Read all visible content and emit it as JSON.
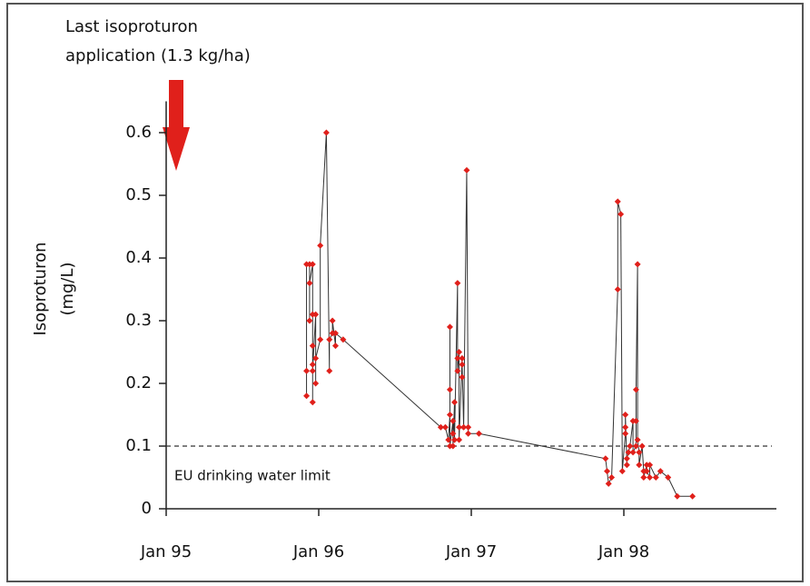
{
  "chart_data": {
    "type": "line",
    "annotation_lines": [
      "Last isoproturon",
      "application (1.3 kg/ha)"
    ],
    "y_label_lines": [
      "Isoproturon",
      "(mg/L)"
    ],
    "limit": {
      "label": "EU drinking water limit",
      "value": 0.1
    },
    "xlim": [
      1995,
      1999
    ],
    "xticks": [
      {
        "value": 1995,
        "label": "Jan 95"
      },
      {
        "value": 1996,
        "label": "Jan 96"
      },
      {
        "value": 1997,
        "label": "Jan 97"
      },
      {
        "value": 1998,
        "label": "Jan 98"
      }
    ],
    "ylim": [
      0,
      0.65
    ],
    "yticks": [
      0,
      0.1,
      0.2,
      0.3,
      0.4,
      0.5,
      0.6
    ],
    "line_color": "#333333",
    "series": [
      {
        "color": "#e0201b",
        "x": [
          1995.92,
          1995.92,
          1995.92,
          1995.94,
          1995.94,
          1995.94,
          1995.96,
          1995.96,
          1995.96,
          1995.96,
          1995.96,
          1995.96,
          1995.98,
          1995.98,
          1995.98,
          1996.01,
          1996.01,
          1996.05,
          1996.07,
          1996.07,
          1996.09,
          1996.09,
          1996.11,
          1996.11,
          1996.16,
          1996.8,
          1996.83,
          1996.85,
          1996.86,
          1996.86,
          1996.86,
          1996.86,
          1996.88,
          1996.88,
          1996.88,
          1996.89,
          1996.89,
          1996.91,
          1996.91,
          1996.91,
          1996.92,
          1996.92,
          1996.92,
          1996.94,
          1996.94,
          1996.94,
          1996.95,
          1996.97,
          1996.98,
          1996.98,
          1997.05,
          1997.88,
          1997.89,
          1997.9,
          1997.92,
          1997.96,
          1997.96,
          1997.98,
          1997.99,
          1998.01,
          1998.01,
          1998.01,
          1998.02,
          1998.02,
          1998.03,
          1998.04,
          1998.06,
          1998.06,
          1998.08,
          1998.08,
          1998.08,
          1998.09,
          1998.09,
          1998.1,
          1998.1,
          1998.12,
          1998.13,
          1998.13,
          1998.15,
          1998.15,
          1998.17,
          1998.17,
          1998.21,
          1998.24,
          1998.29,
          1998.35,
          1998.45
        ],
        "values": [
          0.18,
          0.22,
          0.39,
          0.39,
          0.3,
          0.36,
          0.39,
          0.31,
          0.17,
          0.23,
          0.26,
          0.22,
          0.31,
          0.2,
          0.24,
          0.27,
          0.42,
          0.6,
          0.22,
          0.27,
          0.28,
          0.3,
          0.26,
          0.28,
          0.27,
          0.13,
          0.13,
          0.11,
          0.15,
          0.19,
          0.29,
          0.1,
          0.14,
          0.12,
          0.1,
          0.17,
          0.11,
          0.36,
          0.24,
          0.22,
          0.25,
          0.13,
          0.11,
          0.24,
          0.21,
          0.23,
          0.13,
          0.54,
          0.13,
          0.12,
          0.12,
          0.08,
          0.06,
          0.04,
          0.05,
          0.35,
          0.49,
          0.47,
          0.06,
          0.12,
          0.13,
          0.15,
          0.07,
          0.08,
          0.09,
          0.1,
          0.14,
          0.09,
          0.1,
          0.14,
          0.19,
          0.39,
          0.11,
          0.09,
          0.07,
          0.1,
          0.06,
          0.05,
          0.07,
          0.06,
          0.05,
          0.07,
          0.05,
          0.06,
          0.05,
          0.02,
          0.02
        ]
      }
    ]
  }
}
